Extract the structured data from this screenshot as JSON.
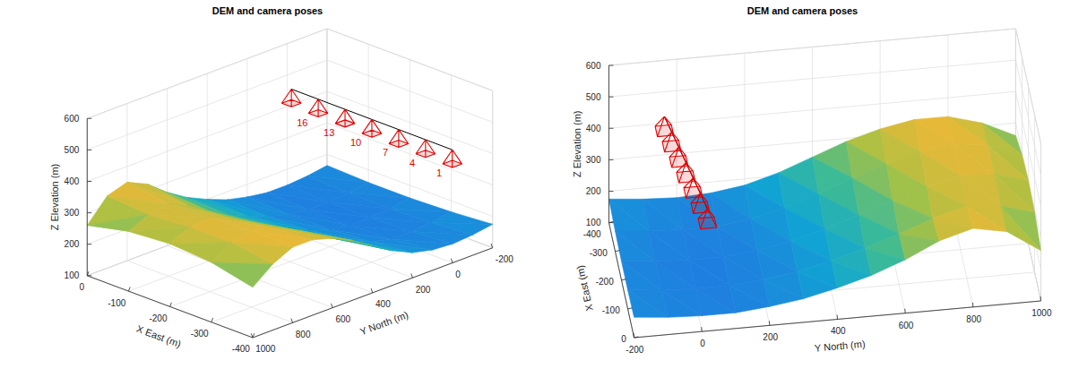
{
  "chart_data": [
    {
      "type": "surface3d",
      "title": "DEM and camera poses",
      "xlabel": "X East (m)",
      "ylabel": "Y North (m)",
      "zlabel": "Z Elevation (m)",
      "xlim": [
        -400,
        0
      ],
      "ylim": [
        -200,
        1000
      ],
      "zlim": [
        100,
        600
      ],
      "xticks": [
        -400,
        -300,
        -200,
        -100,
        0
      ],
      "yticks": [
        -200,
        0,
        200,
        400,
        600,
        800,
        1000
      ],
      "zticks": [
        100,
        200,
        300,
        400,
        500,
        600
      ],
      "grid": true,
      "dem": {
        "x": [
          -400,
          -300,
          -200,
          -100,
          0
        ],
        "y": [
          -200,
          -100,
          0,
          100,
          200,
          300,
          400,
          500,
          600,
          700,
          800,
          900,
          1000
        ],
        "z": [
          [
            175,
            165,
            160,
            160,
            165
          ],
          [
            165,
            155,
            150,
            150,
            155
          ],
          [
            160,
            150,
            145,
            145,
            150
          ],
          [
            165,
            150,
            145,
            145,
            150
          ],
          [
            180,
            165,
            155,
            155,
            160
          ],
          [
            210,
            190,
            175,
            170,
            175
          ],
          [
            250,
            225,
            205,
            195,
            200
          ],
          [
            290,
            265,
            240,
            225,
            230
          ],
          [
            320,
            300,
            275,
            260,
            270
          ],
          [
            340,
            330,
            310,
            300,
            320
          ],
          [
            340,
            345,
            335,
            330,
            350
          ],
          [
            310,
            330,
            330,
            320,
            330
          ],
          [
            260,
            290,
            300,
            290,
            260
          ]
        ]
      },
      "cameras": {
        "x": [
          -380,
          -320,
          -260,
          -200,
          -140,
          -80,
          -20
        ],
        "y": [
          -40,
          -30,
          -20,
          -10,
          0,
          10,
          20
        ],
        "z": [
          440,
          445,
          450,
          455,
          460,
          465,
          470
        ],
        "labels": [
          1,
          4,
          7,
          10,
          13,
          16,
          null
        ]
      }
    },
    {
      "type": "surface3d",
      "title": "DEM and camera poses",
      "xlabel": "X East (m)",
      "ylabel": "Y North (m)",
      "zlabel": "Z Elevation (m)",
      "xlim": [
        -400,
        0
      ],
      "ylim": [
        -200,
        1000
      ],
      "zlim": [
        100,
        600
      ],
      "xticks": [
        -400,
        -300,
        -200,
        -100,
        0
      ],
      "yticks": [
        -200,
        0,
        200,
        400,
        600,
        800,
        1000
      ],
      "zticks": [
        100,
        200,
        300,
        400,
        500,
        600
      ],
      "grid": true,
      "dem": {
        "x": [
          -400,
          -300,
          -200,
          -100,
          0
        ],
        "y": [
          -200,
          -100,
          0,
          100,
          200,
          300,
          400,
          500,
          600,
          700,
          800,
          900,
          1000
        ],
        "z": [
          [
            175,
            165,
            160,
            160,
            165
          ],
          [
            165,
            155,
            150,
            150,
            155
          ],
          [
            160,
            150,
            145,
            145,
            150
          ],
          [
            165,
            150,
            145,
            145,
            150
          ],
          [
            180,
            165,
            155,
            155,
            160
          ],
          [
            210,
            190,
            175,
            170,
            175
          ],
          [
            250,
            225,
            205,
            195,
            200
          ],
          [
            290,
            265,
            240,
            225,
            230
          ],
          [
            320,
            300,
            275,
            260,
            270
          ],
          [
            340,
            330,
            310,
            300,
            320
          ],
          [
            340,
            345,
            335,
            330,
            350
          ],
          [
            310,
            330,
            330,
            320,
            330
          ],
          [
            260,
            290,
            300,
            290,
            260
          ]
        ]
      },
      "cameras": {
        "x": [
          -380,
          -320,
          -260,
          -200,
          -140,
          -80,
          -20
        ],
        "y": [
          -40,
          -30,
          -20,
          -10,
          0,
          10,
          20
        ],
        "z": [
          440,
          445,
          450,
          455,
          460,
          465,
          470
        ]
      }
    }
  ]
}
